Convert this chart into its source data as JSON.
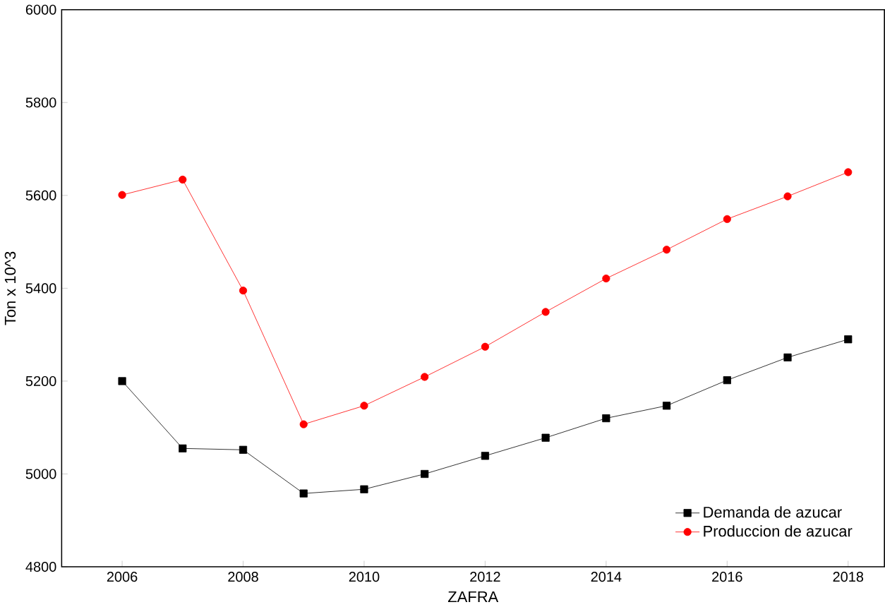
{
  "chart_data": {
    "type": "line",
    "xlabel": "ZAFRA",
    "ylabel": "Ton x 10^3",
    "x": [
      2006,
      2007,
      2008,
      2009,
      2010,
      2011,
      2012,
      2013,
      2014,
      2015,
      2016,
      2017,
      2018
    ],
    "series": [
      {
        "name": "Demanda de azucar",
        "color": "#000000",
        "marker": "square",
        "values": [
          5200,
          5055,
          5052,
          4958,
          4967,
          5000,
          5039,
          5078,
          5120,
          5147,
          5202,
          5251,
          5290
        ]
      },
      {
        "name": "Produccion de azucar",
        "color": "#ff0000",
        "marker": "circle",
        "values": [
          5601,
          5634,
          5395,
          5107,
          5147,
          5209,
          5274,
          5349,
          5421,
          5483,
          5549,
          5598,
          5650
        ]
      }
    ],
    "xlim": [
      2005,
      2018.6
    ],
    "ylim": [
      4800,
      6000
    ],
    "xticks": [
      2006,
      2008,
      2010,
      2012,
      2014,
      2016,
      2018
    ],
    "yticks": [
      4800,
      5000,
      5200,
      5400,
      5600,
      5800,
      6000
    ],
    "grid": false,
    "legend": "bottom right",
    "line_style": "solid"
  }
}
